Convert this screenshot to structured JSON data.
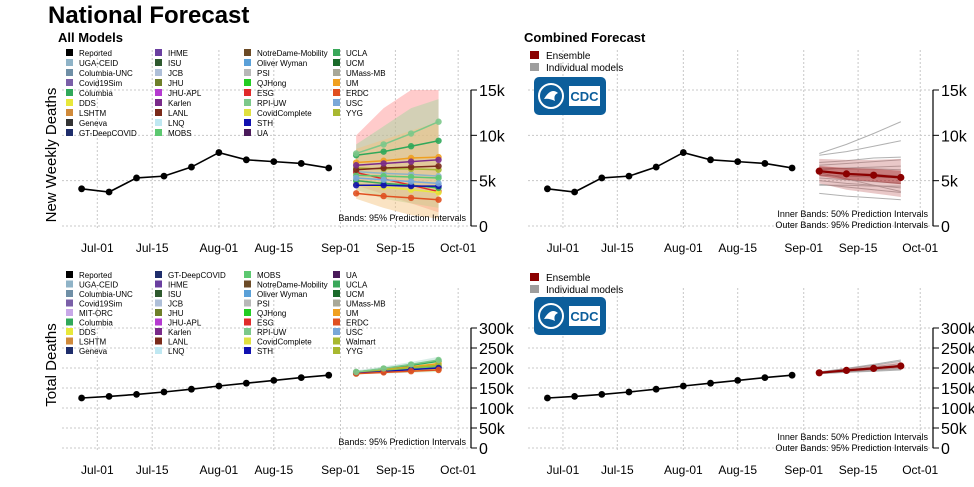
{
  "page": {
    "title": "National Forecast"
  },
  "panels": {
    "all_models_title": "All Models",
    "combined_title": "Combined Forecast",
    "ylabel_weekly": "New Weekly Deaths",
    "ylabel_total": "Total Deaths",
    "note_all": "Bands: 95% Prediction Intervals",
    "note_inner": "Inner Bands: 50% Prediction Intervals",
    "note_outer": "Outer Bands: 95% Prediction Intervals",
    "legend_ensemble": "Ensemble",
    "legend_individual": "Individual models",
    "logo_text": "CDC"
  },
  "colors": {
    "reported": "#000000",
    "ensemble": "#8b0000",
    "individual": "#9e9e9e",
    "grid": "#c8c8c8",
    "cdc_blue": "#0c5e9b"
  },
  "legend_top": [
    {
      "name": "Reported",
      "color": "#000000"
    },
    {
      "name": "UGA-CEID",
      "color": "#8fb3c7"
    },
    {
      "name": "Columbia-UNC",
      "color": "#6f8fa6"
    },
    {
      "name": "Covid19Sim",
      "color": "#7a5fa8"
    },
    {
      "name": "Columbia",
      "color": "#30a85a"
    },
    {
      "name": "DDS",
      "color": "#e8e83a"
    },
    {
      "name": "LSHTM",
      "color": "#d08a3a"
    },
    {
      "name": "Geneva",
      "color": "#333333"
    },
    {
      "name": "GT-DeepCOVID",
      "color": "#1e2d6b"
    },
    {
      "name": "IHME",
      "color": "#6a3fa0"
    },
    {
      "name": "ISU",
      "color": "#2f5a2f"
    },
    {
      "name": "JCB",
      "color": "#aebfd8"
    },
    {
      "name": "JHU",
      "color": "#6e7f2a"
    },
    {
      "name": "JHU-APL",
      "color": "#b53ad0"
    },
    {
      "name": "Karlen",
      "color": "#7a2a8a"
    },
    {
      "name": "LANL",
      "color": "#7a2a1a"
    },
    {
      "name": "LNQ",
      "color": "#bfe8f2"
    },
    {
      "name": "MOBS",
      "color": "#5cc870"
    },
    {
      "name": "NotreDame-Mobility",
      "color": "#6b4a26"
    },
    {
      "name": "Oliver Wyman",
      "color": "#5aa0d8"
    },
    {
      "name": "PSI",
      "color": "#b8b8b8"
    },
    {
      "name": "QJHong",
      "color": "#22cc22"
    },
    {
      "name": "ESG",
      "color": "#e02a2a"
    },
    {
      "name": "RPI-UW",
      "color": "#7cc88a"
    },
    {
      "name": "CovidComplete",
      "color": "#e0e040"
    },
    {
      "name": "STH",
      "color": "#1010b0"
    },
    {
      "name": "UA",
      "color": "#4a1a5a"
    },
    {
      "name": "UCLA",
      "color": "#3aa85a"
    },
    {
      "name": "UCM",
      "color": "#1a6a2a"
    },
    {
      "name": "UMass-MB",
      "color": "#a8a898"
    },
    {
      "name": "UM",
      "color": "#f0a020"
    },
    {
      "name": "ERDC",
      "color": "#e05020"
    },
    {
      "name": "USC",
      "color": "#7aa8d8"
    },
    {
      "name": "YYG",
      "color": "#a8b830"
    }
  ],
  "legend_bottom": [
    {
      "name": "Reported",
      "color": "#000000"
    },
    {
      "name": "UGA-CEID",
      "color": "#8fb3c7"
    },
    {
      "name": "Columbia-UNC",
      "color": "#6f8fa6"
    },
    {
      "name": "Covid19Sim",
      "color": "#7a5fa8"
    },
    {
      "name": "MIT-ORC",
      "color": "#c8a8e8"
    },
    {
      "name": "Columbia",
      "color": "#30a85a"
    },
    {
      "name": "DDS",
      "color": "#e8e83a"
    },
    {
      "name": "LSHTM",
      "color": "#d08a3a"
    },
    {
      "name": "Geneva",
      "color": "#1e2d6b"
    },
    {
      "name": "GT-DeepCOVID",
      "color": "#1e2d6b"
    },
    {
      "name": "IHME",
      "color": "#6a3fa0"
    },
    {
      "name": "ISU",
      "color": "#2f5a2f"
    },
    {
      "name": "JCB",
      "color": "#aebfd8"
    },
    {
      "name": "JHU",
      "color": "#6e7f2a"
    },
    {
      "name": "JHU-APL",
      "color": "#b53ad0"
    },
    {
      "name": "Karlen",
      "color": "#7a2a8a"
    },
    {
      "name": "LANL",
      "color": "#7a2a1a"
    },
    {
      "name": "LNQ",
      "color": "#bfe8f2"
    },
    {
      "name": "MOBS",
      "color": "#5cc870"
    },
    {
      "name": "NotreDame-Mobility",
      "color": "#6b4a26"
    },
    {
      "name": "Oliver Wyman",
      "color": "#5aa0d8"
    },
    {
      "name": "PSI",
      "color": "#b8b8b8"
    },
    {
      "name": "QJHong",
      "color": "#22cc22"
    },
    {
      "name": "ESG",
      "color": "#e02a2a"
    },
    {
      "name": "RPI-UW",
      "color": "#7cc88a"
    },
    {
      "name": "CovidComplete",
      "color": "#e0e040"
    },
    {
      "name": "STH",
      "color": "#1010b0"
    },
    {
      "name": "UA",
      "color": "#4a1a5a"
    },
    {
      "name": "UCLA",
      "color": "#3aa85a"
    },
    {
      "name": "UCM",
      "color": "#1a6a2a"
    },
    {
      "name": "UMass-MB",
      "color": "#a8a898"
    },
    {
      "name": "UM",
      "color": "#f0a020"
    },
    {
      "name": "ERDC",
      "color": "#e05020"
    },
    {
      "name": "USC",
      "color": "#7aa8d8"
    },
    {
      "name": "Walmart",
      "color": "#a8b830"
    },
    {
      "name": "YYG",
      "color": "#a8b830"
    }
  ],
  "chart_data": [
    {
      "id": "weekly-all",
      "type": "line",
      "title": "All Models",
      "ylabel": "New Weekly Deaths",
      "xlim": [
        "2020-06-22",
        "2020-10-03"
      ],
      "xticks": [
        "Jul-01",
        "Jul-15",
        "Aug-01",
        "Aug-15",
        "Sep-01",
        "Sep-15",
        "Oct-01"
      ],
      "ylim": [
        0,
        15000
      ],
      "yticks": [
        "0",
        "5k",
        "10k",
        "15k"
      ],
      "grid": true,
      "reported": {
        "x": [
          "2020-06-27",
          "2020-07-04",
          "2020-07-11",
          "2020-07-18",
          "2020-07-25",
          "2020-08-01",
          "2020-08-08",
          "2020-08-15",
          "2020-08-22",
          "2020-08-29"
        ],
        "y": [
          4100,
          3750,
          5300,
          5500,
          6500,
          8100,
          7300,
          7100,
          6900,
          6400
        ]
      },
      "forecast_x": [
        "2020-09-05",
        "2020-09-12",
        "2020-09-19",
        "2020-09-26"
      ],
      "model_forecasts": [
        {
          "name": "UGA-CEID",
          "values": [
            6000,
            5800,
            5700,
            5500
          ]
        },
        {
          "name": "Columbia",
          "values": [
            7800,
            8200,
            8800,
            9400
          ]
        },
        {
          "name": "UM",
          "values": [
            7000,
            7200,
            7500,
            7600
          ]
        },
        {
          "name": "ESG",
          "values": [
            5900,
            5200,
            4500,
            3800
          ]
        },
        {
          "name": "MOBS",
          "values": [
            5600,
            5500,
            5400,
            5300
          ]
        },
        {
          "name": "YYG",
          "values": [
            6400,
            6300,
            6300,
            6200
          ]
        },
        {
          "name": "DDS",
          "values": [
            4600,
            4300,
            4000,
            3700
          ]
        },
        {
          "name": "UCLA",
          "values": [
            5000,
            4700,
            4500,
            4200
          ]
        },
        {
          "name": "LANL",
          "values": [
            6200,
            6400,
            6500,
            6600
          ]
        },
        {
          "name": "STH",
          "values": [
            4500,
            4500,
            4400,
            4400
          ]
        },
        {
          "name": "ERDC",
          "values": [
            3600,
            3300,
            3100,
            2900
          ]
        },
        {
          "name": "Karlen",
          "values": [
            6700,
            6900,
            7100,
            7300
          ]
        },
        {
          "name": "RPI-UW",
          "values": [
            8000,
            9000,
            10200,
            11500
          ]
        },
        {
          "name": "USC",
          "values": [
            5300,
            5100,
            4900,
            4700
          ]
        }
      ],
      "bands_95": [
        {
          "color": "#ff8c8c",
          "lower": [
            4500,
            3500,
            2500,
            1500
          ],
          "upper": [
            10000,
            13000,
            15000,
            15000
          ]
        },
        {
          "color": "#9ed79e",
          "lower": [
            4000,
            3000,
            2500,
            2000
          ],
          "upper": [
            9000,
            11000,
            13000,
            14000
          ]
        },
        {
          "color": "#f4c27a",
          "lower": [
            3000,
            2000,
            1200,
            800
          ],
          "upper": [
            8500,
            9500,
            10500,
            11500
          ]
        }
      ],
      "annotation": "Bands: 95% Prediction Intervals"
    },
    {
      "id": "weekly-combined",
      "type": "line",
      "title": "Combined Forecast",
      "ylabel": "",
      "xlim": [
        "2020-06-22",
        "2020-10-03"
      ],
      "xticks": [
        "Jul-01",
        "Jul-15",
        "Aug-01",
        "Aug-15",
        "Sep-01",
        "Sep-15",
        "Oct-01"
      ],
      "ylim": [
        0,
        15000
      ],
      "yticks": [
        "0",
        "5k",
        "10k",
        "15k"
      ],
      "grid": true,
      "reported": {
        "x": [
          "2020-06-27",
          "2020-07-04",
          "2020-07-11",
          "2020-07-18",
          "2020-07-25",
          "2020-08-01",
          "2020-08-08",
          "2020-08-15",
          "2020-08-22",
          "2020-08-29"
        ],
        "y": [
          4100,
          3750,
          5300,
          5500,
          6500,
          8100,
          7300,
          7100,
          6900,
          6400
        ]
      },
      "forecast_x": [
        "2020-09-05",
        "2020-09-12",
        "2020-09-19",
        "2020-09-26"
      ],
      "ensemble": [
        6050,
        5750,
        5600,
        5350
      ],
      "ensemble_band_50": {
        "lower": [
          5500,
          5100,
          4900,
          4600
        ],
        "upper": [
          6600,
          6400,
          6300,
          6100
        ]
      },
      "ensemble_band_95": {
        "lower": [
          4700,
          4000,
          3600,
          3200
        ],
        "upper": [
          7400,
          7300,
          7300,
          7400
        ]
      },
      "individual": [
        [
          6000,
          5800,
          5700,
          5500
        ],
        [
          7800,
          8200,
          8800,
          9400
        ],
        [
          7000,
          7200,
          7500,
          7600
        ],
        [
          5900,
          5200,
          4500,
          3800
        ],
        [
          5600,
          5500,
          5400,
          5300
        ],
        [
          6400,
          6300,
          6300,
          6200
        ],
        [
          4600,
          4300,
          4000,
          3700
        ],
        [
          5000,
          4700,
          4500,
          4200
        ],
        [
          6200,
          6400,
          6500,
          6600
        ],
        [
          4500,
          4500,
          4400,
          4400
        ],
        [
          3600,
          3300,
          3100,
          2900
        ],
        [
          6700,
          6900,
          7100,
          7300
        ],
        [
          8000,
          9000,
          10200,
          11500
        ],
        [
          5300,
          5100,
          4900,
          4700
        ]
      ],
      "annotation": [
        "Inner Bands: 50% Prediction Intervals",
        "Outer Bands: 95% Prediction Intervals"
      ],
      "legend": [
        "Ensemble",
        "Individual models"
      ]
    },
    {
      "id": "total-all",
      "type": "line",
      "title": "",
      "ylabel": "Total Deaths",
      "xlim": [
        "2020-06-22",
        "2020-10-03"
      ],
      "xticks": [
        "Jul-01",
        "Jul-15",
        "Aug-01",
        "Aug-15",
        "Sep-01",
        "Sep-15",
        "Oct-01"
      ],
      "ylim": [
        0,
        300000
      ],
      "yticks": [
        "0",
        "50k",
        "100k",
        "150k",
        "200k",
        "250k",
        "300k"
      ],
      "grid": true,
      "reported": {
        "x": [
          "2020-06-27",
          "2020-07-04",
          "2020-07-11",
          "2020-07-18",
          "2020-07-25",
          "2020-08-01",
          "2020-08-08",
          "2020-08-15",
          "2020-08-22",
          "2020-08-29"
        ],
        "y": [
          125000,
          129000,
          134000,
          140000,
          147000,
          155000,
          162000,
          169000,
          176000,
          182000
        ]
      },
      "forecast_x": [
        "2020-09-05",
        "2020-09-12",
        "2020-09-19",
        "2020-09-26"
      ],
      "model_forecasts": [
        {
          "name": "UGA-CEID",
          "values": [
            188000,
            193000,
            199000,
            204000
          ]
        },
        {
          "name": "Columbia",
          "values": [
            190000,
            198000,
            207000,
            217000
          ]
        },
        {
          "name": "UM",
          "values": [
            189000,
            196000,
            203000,
            211000
          ]
        },
        {
          "name": "ESG",
          "values": [
            188000,
            193000,
            197000,
            201000
          ]
        },
        {
          "name": "MOBS",
          "values": [
            188000,
            194000,
            199000,
            204000
          ]
        },
        {
          "name": "YYG",
          "values": [
            188000,
            195000,
            201000,
            207000
          ]
        },
        {
          "name": "DDS",
          "values": [
            186000,
            190000,
            194000,
            197000
          ]
        },
        {
          "name": "STH",
          "values": [
            187000,
            191000,
            196000,
            200000
          ]
        },
        {
          "name": "ERDC",
          "values": [
            186000,
            189000,
            192000,
            195000
          ]
        },
        {
          "name": "RPI-UW",
          "values": [
            190000,
            199000,
            209000,
            220000
          ]
        }
      ],
      "bands_95": [
        {
          "color": "#a8d8c8",
          "lower": [
            184000,
            186000,
            188000,
            190000
          ],
          "upper": [
            194000,
            204000,
            215000,
            228000
          ]
        },
        {
          "color": "#e8e88a",
          "lower": [
            185000,
            187000,
            189000,
            191000
          ],
          "upper": [
            192000,
            200000,
            209000,
            218000
          ]
        }
      ],
      "annotation": "Bands: 95% Prediction Intervals"
    },
    {
      "id": "total-combined",
      "type": "line",
      "title": "",
      "ylabel": "",
      "xlim": [
        "2020-06-22",
        "2020-10-03"
      ],
      "xticks": [
        "Jul-01",
        "Jul-15",
        "Aug-01",
        "Aug-15",
        "Sep-01",
        "Sep-15",
        "Oct-01"
      ],
      "ylim": [
        0,
        300000
      ],
      "yticks": [
        "0",
        "50k",
        "100k",
        "150k",
        "200k",
        "250k",
        "300k"
      ],
      "grid": true,
      "reported": {
        "x": [
          "2020-06-27",
          "2020-07-04",
          "2020-07-11",
          "2020-07-18",
          "2020-07-25",
          "2020-08-01",
          "2020-08-08",
          "2020-08-15",
          "2020-08-22",
          "2020-08-29"
        ],
        "y": [
          125000,
          129000,
          134000,
          140000,
          147000,
          155000,
          162000,
          169000,
          176000,
          182000
        ]
      },
      "forecast_x": [
        "2020-09-05",
        "2020-09-12",
        "2020-09-19",
        "2020-09-26"
      ],
      "ensemble": [
        188000,
        194000,
        199000,
        205000
      ],
      "ensemble_band_50": {
        "lower": [
          187000,
          192000,
          197000,
          202000
        ],
        "upper": [
          189000,
          196000,
          202000,
          208000
        ]
      },
      "ensemble_band_95": {
        "lower": [
          186000,
          190000,
          194000,
          198000
        ],
        "upper": [
          190000,
          199000,
          207000,
          215000
        ]
      },
      "individual": [
        [
          188000,
          193000,
          199000,
          204000
        ],
        [
          190000,
          198000,
          207000,
          217000
        ],
        [
          189000,
          196000,
          203000,
          211000
        ],
        [
          188000,
          193000,
          197000,
          201000
        ],
        [
          188000,
          194000,
          199000,
          204000
        ],
        [
          188000,
          195000,
          201000,
          207000
        ],
        [
          186000,
          190000,
          194000,
          197000
        ],
        [
          187000,
          191000,
          196000,
          200000
        ],
        [
          186000,
          189000,
          192000,
          195000
        ],
        [
          190000,
          199000,
          209000,
          220000
        ]
      ],
      "annotation": [
        "Inner Bands: 50% Prediction Intervals",
        "Outer Bands: 95% Prediction Intervals"
      ],
      "legend": [
        "Ensemble",
        "Individual models"
      ]
    }
  ]
}
